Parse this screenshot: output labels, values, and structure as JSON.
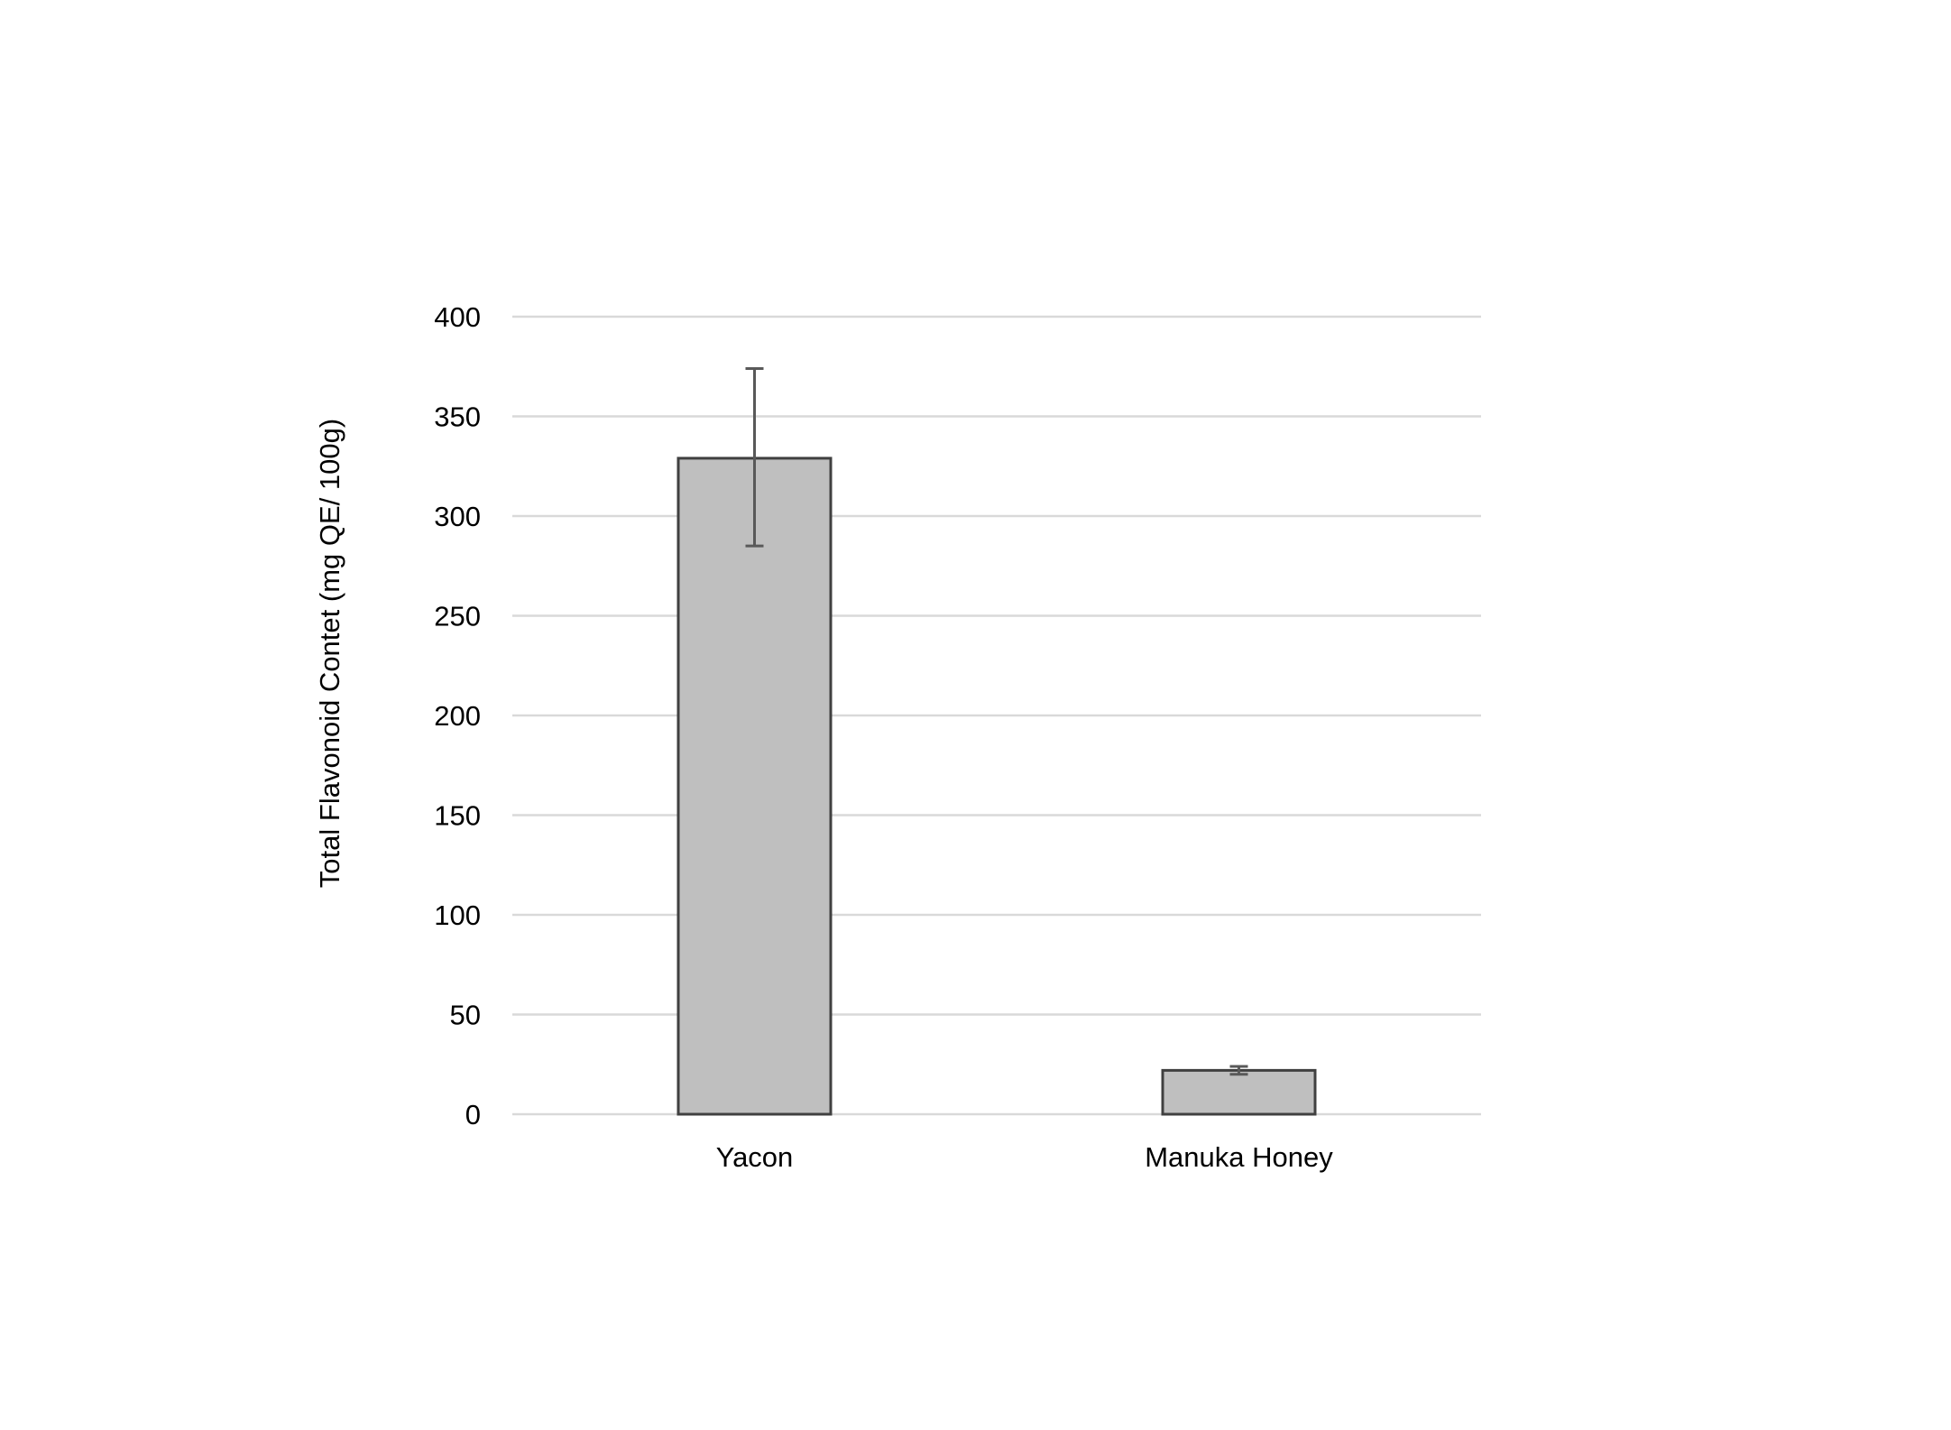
{
  "chart_data": {
    "type": "bar",
    "title": "",
    "xlabel": "",
    "ylabel": "Total Flavonoid Contet (mg QE/ 100g)",
    "categories": [
      "Yacon",
      "Manuka Honey"
    ],
    "values": [
      329,
      22
    ],
    "error_bars": [
      [
        285,
        374
      ],
      [
        20,
        24
      ]
    ],
    "ylim": [
      0,
      400
    ],
    "yticks": [
      0,
      50,
      100,
      150,
      200,
      250,
      300,
      350,
      400
    ],
    "grid": true,
    "legend": "none",
    "colors": {
      "bar_fill": "#bfbfbf",
      "bar_stroke": "#404040",
      "grid": "#d9d9d9",
      "error_bar": "#595959"
    }
  }
}
